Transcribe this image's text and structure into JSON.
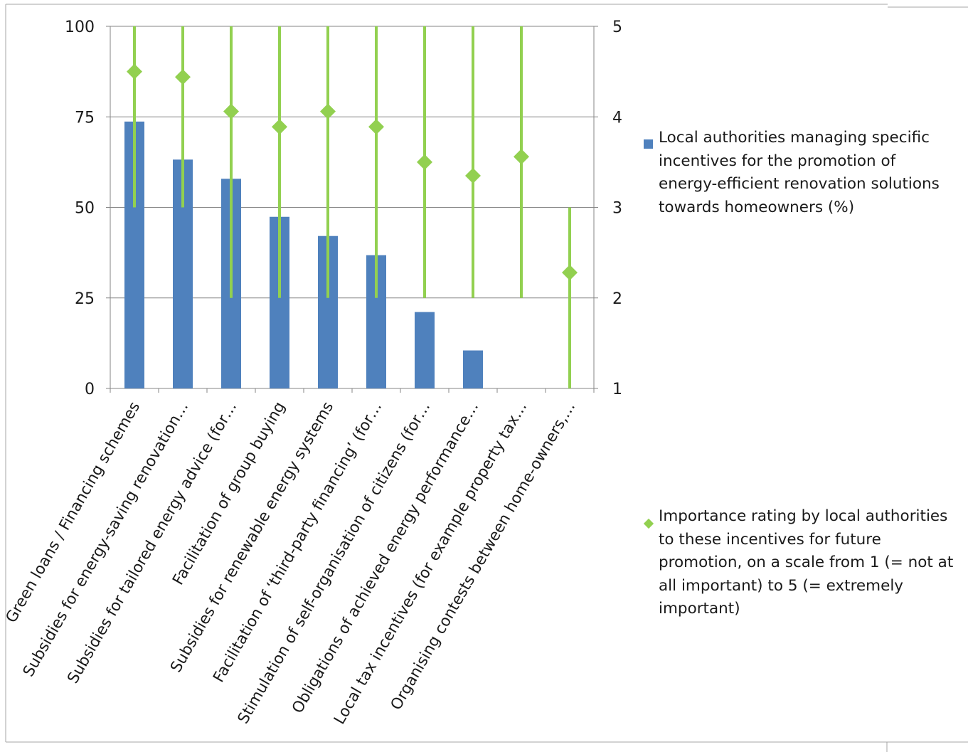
{
  "chart_data": {
    "type": "bar",
    "categories": [
      "Green loans / Financing schemes",
      "Subsidies for energy-saving renovation…",
      "Subsidies for tailored energy advice (for…",
      "Facilitation of group buying",
      "Subsidies for renewable energy systems",
      "Facilitation of ‘third-party financing’ (for…",
      "Stimulation of self-organisation of citizens (for…",
      "Obligations of achieved energy performance…",
      "Local tax incentives (for example property tax…",
      "Organising contests between home-owners,…"
    ],
    "series": [
      {
        "name": "Local authorities managing specific incentives for the promotion of energy-efficient renovation solutions towards homeowners (%)",
        "type": "bar",
        "axis": "left",
        "color": "#4f81bd",
        "values": [
          73.7,
          63.2,
          57.9,
          47.4,
          42.1,
          36.8,
          21.1,
          10.5,
          0,
          0
        ]
      },
      {
        "name": "Importance rating by local authorities to these incentives for future promotion, on a scale from 1 (= not at all important) to 5 (= extremely important)",
        "type": "scatter",
        "marker": "diamond",
        "axis": "right",
        "color": "#92d050",
        "values": [
          4.5,
          4.44,
          4.06,
          3.89,
          4.06,
          3.89,
          3.5,
          3.35,
          3.56,
          2.28
        ],
        "range_low": [
          3,
          3,
          2,
          2,
          2,
          2,
          2,
          2,
          2,
          1
        ],
        "range_high": [
          5,
          5,
          5,
          5,
          5,
          5,
          5,
          5,
          5,
          3
        ]
      }
    ],
    "y_left": {
      "ylim": [
        0,
        100
      ],
      "ticks": [
        "0",
        "25",
        "50",
        "75",
        "100"
      ]
    },
    "y_right": {
      "ylim": [
        1,
        5
      ],
      "ticks": [
        "1",
        "2",
        "3",
        "4",
        "5"
      ]
    },
    "grid": true,
    "legend_position": "right"
  }
}
